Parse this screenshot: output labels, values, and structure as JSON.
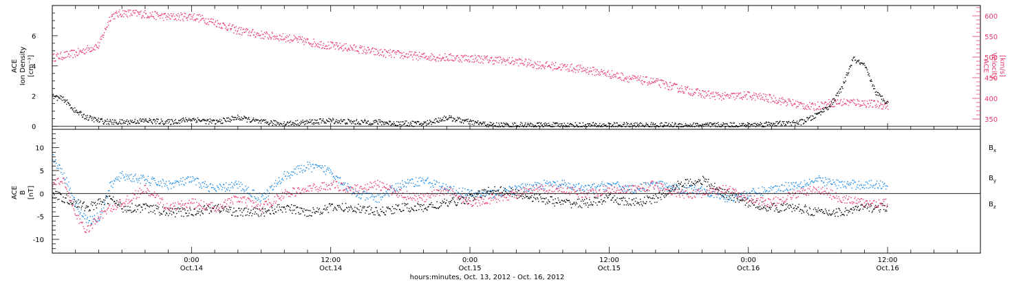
{
  "colors": {
    "density": "#000000",
    "velocity": "#e8386a",
    "bx": "#000000",
    "by": "#1a8ae6",
    "bz": "#e8386a"
  },
  "chart_data": [
    {
      "type": "scatter",
      "panel": "top",
      "ylabel": "ACE Ion Density [cm⁻³]",
      "ylabel_lines": [
        "ACE",
        "Ion Density",
        "[cm⁻³]"
      ],
      "y2label": "ACE Velocity [km/s]",
      "y2label_lines": [
        "ACE",
        "Velocity",
        "[km/s]"
      ],
      "x_range_hours": [
        0,
        80
      ],
      "ylim": [
        -0.2,
        8
      ],
      "y2lim": [
        325,
        625
      ],
      "yticks": [
        0,
        2,
        4,
        6
      ],
      "y2ticks": [
        350,
        400,
        450,
        500,
        550,
        600
      ],
      "series": [
        {
          "key": "density",
          "axis": "left",
          "x": [
            0,
            1,
            2,
            3,
            4,
            5,
            6,
            8,
            10,
            12,
            14,
            16,
            18,
            20,
            22,
            24,
            26,
            28,
            30,
            32,
            34,
            36,
            38,
            40,
            42,
            44,
            46,
            48,
            50,
            52,
            54,
            56,
            58,
            60,
            62,
            63.5,
            64.5,
            65.5,
            67,
            68,
            69,
            70,
            71,
            72
          ],
          "y": [
            2.0,
            1.8,
            1.0,
            0.6,
            0.4,
            0.3,
            0.3,
            0.4,
            0.3,
            0.5,
            0.3,
            0.6,
            0.3,
            0.2,
            0.3,
            0.4,
            0.3,
            0.3,
            0.2,
            0.2,
            0.6,
            0.3,
            0.1,
            0.1,
            0.1,
            0.1,
            0.1,
            0.1,
            0.1,
            0.1,
            0.1,
            0.1,
            0.1,
            0.1,
            0.2,
            0.2,
            0.3,
            0.6,
            1.4,
            2.5,
            4.5,
            4.0,
            2.2,
            1.6
          ]
        },
        {
          "key": "velocity",
          "axis": "right",
          "x": [
            0,
            2,
            4,
            5,
            6,
            8,
            10,
            12,
            14,
            16,
            18,
            20,
            22,
            24,
            26,
            28,
            30,
            32,
            34,
            36,
            38,
            40,
            42,
            44,
            46,
            48,
            50,
            52,
            54,
            56,
            58,
            60,
            62,
            64,
            65.5,
            67,
            69,
            71,
            72
          ],
          "y": [
            500,
            510,
            530,
            600,
            608,
            605,
            598,
            600,
            585,
            565,
            555,
            548,
            538,
            528,
            522,
            512,
            507,
            502,
            500,
            498,
            494,
            490,
            482,
            477,
            470,
            460,
            448,
            440,
            425,
            412,
            405,
            408,
            400,
            388,
            380,
            390,
            392,
            386,
            384
          ]
        }
      ]
    },
    {
      "type": "scatter",
      "panel": "bottom",
      "ylabel": "ACE B [nT]",
      "ylabel_lines": [
        "ACE",
        "B",
        "[nT]"
      ],
      "x_range_hours": [
        0,
        80
      ],
      "ylim": [
        -13,
        14
      ],
      "yticks": [
        -10,
        -5,
        0,
        5,
        10
      ],
      "xticks": [
        {
          "hour": 12,
          "line1": "0:00",
          "line2": "Oct.14"
        },
        {
          "hour": 24,
          "line1": "12:00",
          "line2": "Oct.14"
        },
        {
          "hour": 36,
          "line1": "0:00",
          "line2": "Oct.15"
        },
        {
          "hour": 48,
          "line1": "12:00",
          "line2": "Oct.15"
        },
        {
          "hour": 60,
          "line1": "0:00",
          "line2": "Oct.16"
        },
        {
          "hour": 72,
          "line1": "12:00",
          "line2": "Oct.16"
        }
      ],
      "xlabel": "hours:minutes, Oct. 13, 2012 - Oct. 16, 2012",
      "series": [
        {
          "key": "bx",
          "label": "B",
          "sub": "x",
          "x": [
            0,
            1,
            2,
            3,
            4,
            5,
            6,
            8,
            10,
            12,
            14,
            16,
            18,
            20,
            22,
            24,
            26,
            28,
            30,
            32,
            34,
            36,
            38,
            40,
            42,
            44,
            46,
            48,
            50,
            52,
            54,
            56,
            58,
            60,
            62,
            64,
            66,
            68,
            70,
            72
          ],
          "y": [
            0,
            -1,
            -2,
            -3,
            -2,
            -1,
            -3,
            -3,
            -4,
            -4,
            -3,
            -4,
            -4,
            -3,
            -4,
            -3,
            -3,
            -4,
            -3,
            -3,
            -2,
            -1,
            1,
            0,
            -1,
            -2,
            -2,
            -1,
            -2,
            -1,
            2,
            3,
            0,
            -2,
            -3,
            -3,
            -4,
            -4,
            -3,
            -3
          ]
        },
        {
          "key": "by",
          "label": "B",
          "sub": "y",
          "x": [
            0,
            1,
            2,
            3,
            4,
            5,
            6,
            8,
            10,
            12,
            14,
            16,
            18,
            20,
            22,
            24,
            26,
            28,
            30,
            32,
            34,
            36,
            38,
            40,
            42,
            44,
            46,
            48,
            50,
            52,
            54,
            56,
            58,
            60,
            62,
            64,
            66,
            68,
            70,
            72
          ],
          "y": [
            8,
            4,
            -2,
            -6,
            -5,
            2,
            4,
            3,
            2,
            3,
            1,
            2,
            -1,
            4,
            6,
            5,
            0,
            -1,
            2,
            3,
            1,
            0,
            0,
            1,
            2,
            2,
            1,
            2,
            1,
            2,
            1,
            1,
            -1,
            0,
            1,
            2,
            3,
            2,
            2,
            2
          ]
        },
        {
          "key": "bz",
          "label": "B",
          "sub": "z",
          "x": [
            0,
            1,
            2,
            3,
            4,
            5,
            6,
            8,
            10,
            12,
            14,
            16,
            18,
            20,
            22,
            24,
            26,
            28,
            30,
            32,
            34,
            36,
            38,
            40,
            42,
            44,
            46,
            48,
            50,
            52,
            54,
            56,
            58,
            60,
            62,
            64,
            66,
            68,
            70,
            72
          ],
          "y": [
            2,
            3,
            -5,
            -8,
            -5,
            -3,
            -2,
            1,
            -3,
            -2,
            -3,
            -1,
            -3,
            0,
            1,
            2,
            1,
            2,
            0,
            -1,
            1,
            -2,
            -1,
            0,
            1,
            1,
            0,
            1,
            1,
            2,
            0,
            0,
            1,
            -1,
            -2,
            0,
            1,
            -1,
            -2,
            -2
          ]
        }
      ]
    }
  ]
}
